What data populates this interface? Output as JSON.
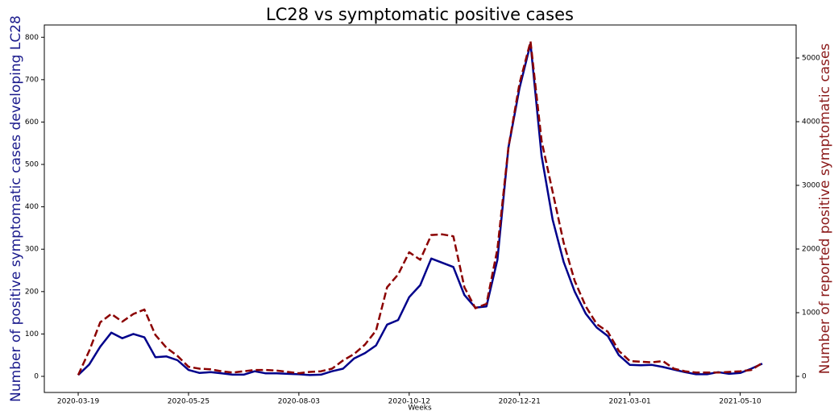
{
  "chart_data": {
    "type": "line",
    "title": "LC28 vs symptomatic positive cases",
    "x_label": "Weeks",
    "y_label": "Number of positive symptomatic cases developing LC28",
    "y2_label": "Number of reported positive symptomatic cases",
    "categories": [
      "2020-03-19",
      null,
      null,
      null,
      null,
      null,
      null,
      null,
      null,
      null,
      "2020-05-25",
      null,
      null,
      null,
      null,
      null,
      null,
      null,
      null,
      null,
      "2020-08-03",
      null,
      null,
      null,
      null,
      null,
      null,
      null,
      null,
      null,
      "2020-10-12",
      null,
      null,
      null,
      null,
      null,
      null,
      null,
      null,
      null,
      "2020-12-21",
      null,
      null,
      null,
      null,
      null,
      null,
      null,
      null,
      null,
      "2021-03-01",
      null,
      null,
      null,
      null,
      null,
      null,
      null,
      null,
      null,
      "2021-05-10",
      null,
      null
    ],
    "series": [
      {
        "color": "#00008b",
        "dash": false,
        "axis": "y",
        "values": [
          3,
          28,
          70,
          103,
          90,
          100,
          92,
          45,
          47,
          38,
          15,
          8,
          10,
          7,
          4,
          4,
          12,
          7,
          7,
          6,
          5,
          3,
          4,
          12,
          18,
          42,
          55,
          73,
          122,
          133,
          187,
          215,
          278,
          268,
          258,
          192,
          162,
          165,
          275,
          540,
          680,
          785,
          520,
          370,
          270,
          200,
          148,
          115,
          95,
          50,
          27,
          26,
          27,
          22,
          16,
          10,
          5,
          5,
          10,
          6,
          8,
          18,
          30
        ]
      },
      {
        "color": "#8b0000",
        "dash": true,
        "axis": "y2",
        "values": [
          20,
          400,
          850,
          980,
          860,
          980,
          1050,
          650,
          450,
          320,
          150,
          120,
          110,
          80,
          60,
          80,
          100,
          100,
          90,
          70,
          50,
          70,
          80,
          120,
          250,
          350,
          500,
          720,
          1400,
          1600,
          1950,
          1830,
          2220,
          2230,
          2200,
          1400,
          1070,
          1140,
          2000,
          3600,
          4600,
          5260,
          3700,
          2900,
          2100,
          1500,
          1100,
          820,
          700,
          400,
          240,
          230,
          220,
          240,
          120,
          80,
          60,
          60,
          60,
          70,
          80,
          100,
          210
        ]
      }
    ],
    "ylim": [
      -38,
      829
    ],
    "yticks": [
      0,
      100,
      200,
      300,
      400,
      500,
      600,
      700,
      800
    ],
    "y2lim": [
      -253,
      5519
    ],
    "y2ticks": [
      0,
      1000,
      2000,
      3000,
      4000,
      5000
    ],
    "y_label_color": "#1a1a8c",
    "y2_label_color": "#8b1a1a"
  }
}
